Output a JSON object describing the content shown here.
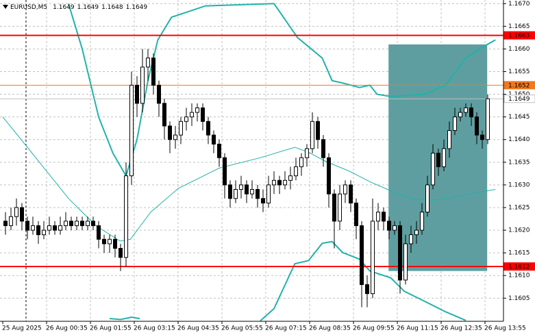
{
  "chart_data": {
    "type": "candlestick",
    "symbol": "EURUSD,M5",
    "ohlc": [
      1.1649,
      1.1649,
      1.1648,
      1.1649
    ],
    "xlim": [
      -1,
      90.875
    ],
    "ylim": [
      1.15999,
      1.16708
    ],
    "grid": true,
    "up_color": "#ffffff",
    "down_color": "#000000",
    "edge_color": "#000000",
    "yticks": [
      1.1605,
      {
        "value": 1.161,
        "label": "1.1610"
      },
      1.1615,
      {
        "value": 1.162,
        "label": "1.1620"
      },
      1.1625,
      {
        "value": 1.163,
        "label": "1.1630"
      },
      1.1635,
      {
        "value": 1.164,
        "label": "1.1640"
      },
      1.1645,
      {
        "value": 1.165,
        "label": "1.1650"
      },
      1.1655,
      {
        "value": 1.166,
        "label": "1.1660"
      },
      1.1665,
      {
        "value": 1.167,
        "label": "1.1670"
      }
    ],
    "xticks": [
      {
        "value": -0.5,
        "label": "25 Aug 2025"
      },
      {
        "value": 7.5,
        "label": "26 Aug 00:35"
      },
      {
        "value": 15.5,
        "label": "26 Aug 01:55"
      },
      {
        "value": 23.5,
        "label": "26 Aug 03:15"
      },
      {
        "value": 31.5,
        "label": "26 Aug 04:35"
      },
      {
        "value": 39.5,
        "label": "26 Aug 05:55"
      },
      {
        "value": 47.5,
        "label": "26 Aug 07:15"
      },
      {
        "value": 55.5,
        "label": "26 Aug 08:35"
      },
      {
        "value": 63.5,
        "label": "26 Aug 09:55"
      },
      {
        "value": 71.5,
        "label": "26 Aug 11:15"
      },
      {
        "value": 79.5,
        "label": "26 Aug 12:35"
      },
      {
        "value": 87.5,
        "label": "26 Aug 13:55"
      }
    ],
    "open": [
      1.1622,
      1.1621,
      1.1623,
      1.1625,
      1.1622,
      1.162,
      1.1621,
      1.1619,
      1.162,
      1.1621,
      1.162,
      1.1621,
      1.1622,
      1.1621,
      1.1622,
      1.1621,
      1.1622,
      1.1621,
      1.1618,
      1.1617,
      1.1618,
      1.1616,
      1.1614,
      1.1632,
      1.1652,
      1.1648,
      1.1656,
      1.1658,
      1.1652,
      1.1648,
      1.1643,
      1.164,
      1.1641,
      1.1644,
      1.1645,
      1.1646,
      1.1647,
      1.1644,
      1.1641,
      1.1639,
      1.1636,
      1.163,
      1.1627,
      1.1629,
      1.163,
      1.1628,
      1.1629,
      1.1627,
      1.1626,
      1.163,
      1.1631,
      1.163,
      1.1631,
      1.1632,
      1.1634,
      1.1636,
      1.1638,
      1.1644,
      1.164,
      1.1636,
      1.1628,
      1.1622,
      1.1628,
      1.163,
      1.1626,
      1.1621,
      1.1608,
      1.1606,
      1.1622,
      1.1624,
      1.1622,
      1.162,
      1.1621,
      1.1609,
      1.1617,
      1.1619,
      1.162,
      1.1624,
      1.163,
      1.1637,
      1.1634,
      1.1638,
      1.1642,
      1.1645,
      1.1646,
      1.1647,
      1.1645,
      1.1641,
      1.164
    ],
    "high": [
      1.1624,
      1.1625,
      1.1627,
      1.1626,
      1.1623,
      1.1623,
      1.1622,
      1.1622,
      1.1623,
      1.1622,
      1.1623,
      1.1624,
      1.1623,
      1.1623,
      1.1623,
      1.1623,
      1.1623,
      1.1622,
      1.1619,
      1.1619,
      1.1619,
      1.1617,
      1.1635,
      1.1655,
      1.1654,
      1.166,
      1.166,
      1.1659,
      1.1653,
      1.1649,
      1.1644,
      1.1643,
      1.1645,
      1.1647,
      1.1648,
      1.1648,
      1.1648,
      1.1645,
      1.1642,
      1.164,
      1.1637,
      1.1631,
      1.1631,
      1.1632,
      1.1631,
      1.1631,
      1.163,
      1.1629,
      1.1632,
      1.1633,
      1.1632,
      1.1633,
      1.1634,
      1.1636,
      1.1637,
      1.1639,
      1.1646,
      1.1645,
      1.1641,
      1.1637,
      1.1629,
      1.163,
      1.1631,
      1.1631,
      1.1627,
      1.1622,
      1.161,
      1.1627,
      1.1626,
      1.1625,
      1.1623,
      1.1622,
      1.1622,
      1.1619,
      1.1621,
      1.1622,
      1.1626,
      1.1632,
      1.1639,
      1.1638,
      1.164,
      1.1644,
      1.1647,
      1.1647,
      1.1648,
      1.1648,
      1.1646,
      1.1642,
      1.165
    ],
    "low": [
      1.1619,
      1.162,
      1.1621,
      1.162,
      1.1618,
      1.1619,
      1.1617,
      1.1618,
      1.1619,
      1.1619,
      1.1619,
      1.162,
      1.162,
      1.162,
      1.162,
      1.162,
      1.162,
      1.1616,
      1.1615,
      1.1615,
      1.1614,
      1.1611,
      1.1612,
      1.163,
      1.1645,
      1.1646,
      1.1653,
      1.165,
      1.1645,
      1.164,
      1.1637,
      1.1638,
      1.1639,
      1.1642,
      1.1643,
      1.1644,
      1.1642,
      1.1639,
      1.1637,
      1.1634,
      1.1627,
      1.1625,
      1.1626,
      1.1627,
      1.1626,
      1.1627,
      1.1625,
      1.1624,
      1.1625,
      1.1628,
      1.1628,
      1.1629,
      1.1629,
      1.1631,
      1.1632,
      1.1634,
      1.1637,
      1.1638,
      1.1634,
      1.1625,
      1.1616,
      1.162,
      1.1626,
      1.1624,
      1.1618,
      1.1603,
      1.1603,
      1.1605,
      1.162,
      1.162,
      1.1618,
      1.1619,
      1.1606,
      1.1608,
      1.1615,
      1.1617,
      1.1619,
      1.1623,
      1.1629,
      1.1632,
      1.1633,
      1.1636,
      1.1641,
      1.1644,
      1.1645,
      1.1643,
      1.1639,
      1.1638,
      1.1639
    ],
    "close": [
      1.1621,
      1.1623,
      1.1625,
      1.1622,
      1.162,
      1.1621,
      1.1619,
      1.162,
      1.1621,
      1.162,
      1.1621,
      1.1622,
      1.1621,
      1.1622,
      1.1621,
      1.1622,
      1.1621,
      1.1618,
      1.1617,
      1.1618,
      1.1616,
      1.1614,
      1.1632,
      1.1652,
      1.1648,
      1.1656,
      1.1658,
      1.1652,
      1.1648,
      1.1643,
      1.164,
      1.1641,
      1.1644,
      1.1645,
      1.1646,
      1.1647,
      1.1644,
      1.1641,
      1.1639,
      1.1636,
      1.163,
      1.1627,
      1.1629,
      1.163,
      1.1628,
      1.1629,
      1.1627,
      1.1626,
      1.163,
      1.1631,
      1.163,
      1.1631,
      1.1632,
      1.1634,
      1.1636,
      1.1638,
      1.1644,
      1.164,
      1.1636,
      1.1628,
      1.1622,
      1.1628,
      1.163,
      1.1626,
      1.1621,
      1.1608,
      1.1606,
      1.1622,
      1.1624,
      1.1622,
      1.162,
      1.1621,
      1.1609,
      1.1617,
      1.1619,
      1.162,
      1.1624,
      1.163,
      1.1637,
      1.1634,
      1.1638,
      1.1642,
      1.1645,
      1.1646,
      1.1647,
      1.1645,
      1.1641,
      1.164,
      1.1649
    ],
    "bands": [
      {
        "color": "#20b2aa",
        "width": 2,
        "x": [
          11.5,
          14,
          17,
          19.6,
          22,
          24,
          26,
          27.8,
          30.3,
          36.5,
          49,
          53.3,
          57.8,
          59.6,
          61.5,
          64.6,
          66.5,
          67.8,
          70.3,
          76.5,
          80.3,
          84,
          86.5,
          89.4
        ],
        "values": [
          1.167,
          1.166,
          1.1645,
          1.1637,
          1.1632,
          1.164,
          1.1653,
          1.1662,
          1.1667,
          1.16695,
          1.167,
          1.16625,
          1.1658,
          1.1653,
          1.16525,
          1.16515,
          1.1652,
          1.165,
          1.16495,
          1.165,
          1.1652,
          1.1658,
          1.166,
          1.1662
        ]
      },
      {
        "color": "#20b2aa",
        "width": 1,
        "x": [
          -0.5,
          4,
          11.5,
          16.5,
          20.9,
          22.8,
          26.5,
          31.5,
          39,
          46.5,
          52.8,
          55.3,
          58.4,
          62.8,
          66.5,
          70.3,
          74,
          77.8,
          81.5,
          86.5,
          89.4
        ],
        "values": [
          1.1645,
          1.16383,
          1.1627,
          1.1621,
          1.16176,
          1.1618,
          1.1624,
          1.16292,
          1.16337,
          1.1636,
          1.16383,
          1.16372,
          1.16352,
          1.1633,
          1.16307,
          1.16287,
          1.1627,
          1.16266,
          1.16272,
          1.16284,
          1.1629
        ]
      },
      {
        "color": "#20b2aa",
        "width": 2,
        "x": [
          19,
          21,
          23,
          24.5,
          30,
          46.5,
          49,
          52.8,
          55.3,
          57.8,
          59.6,
          61.5,
          64.6,
          66.5,
          70.3,
          72.8,
          76.5,
          80.3,
          84
        ],
        "values": [
          1.16005,
          1.16003,
          1.16008,
          1.16005,
          null,
          1.16,
          1.16027,
          1.16126,
          1.16133,
          1.16171,
          1.16175,
          1.16151,
          1.16136,
          1.1611,
          1.16095,
          1.16065,
          1.16043,
          1.1602,
          1.16001
        ]
      }
    ],
    "rectangle": {
      "x": [
        69.9,
        87.9
      ],
      "y": [
        1.1611,
        1.1661
      ],
      "color": "#5f9ea0"
    },
    "levels": [
      {
        "value": 1.1663,
        "color": "#ff0000",
        "text_color": "#ffffff",
        "width": 2
      },
      {
        "value": 1.1652,
        "color": "#f07820",
        "text_color": "#ffffff",
        "width": 1
      },
      {
        "value": 1.1649,
        "color": "#c0c0c0",
        "text_color": "#000000",
        "width": 1
      },
      {
        "value": 1.1612,
        "color": "#ff0000",
        "text_color": "#ffffff",
        "width": 2
      }
    ]
  }
}
